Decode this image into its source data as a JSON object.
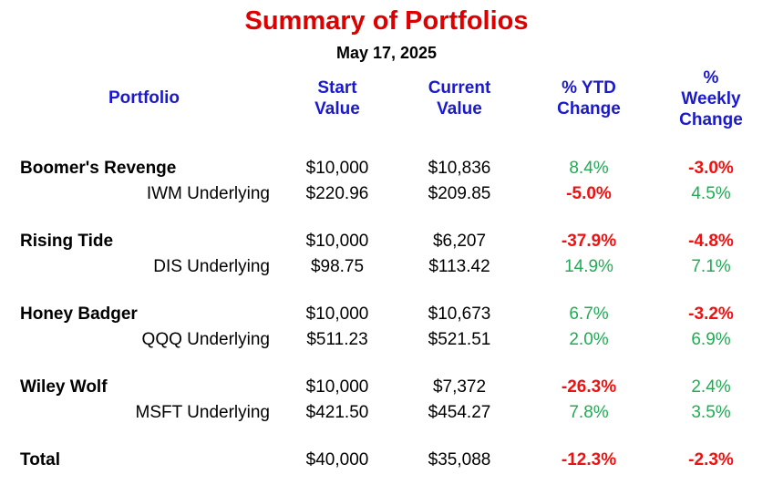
{
  "title": "Summary of Portfolios",
  "date": "May 17, 2025",
  "headers": {
    "portfolio": "Portfolio",
    "start": [
      "Start",
      "Value"
    ],
    "current": [
      "Current",
      "Value"
    ],
    "ytd": [
      "% YTD",
      "Change"
    ],
    "weekly": [
      "%",
      "Weekly",
      "Change"
    ]
  },
  "colors": {
    "title": "#dd0000",
    "header": "#1a1acc",
    "positive": "#22aa55",
    "negative": "#ee1111"
  },
  "rows": [
    {
      "name": "Boomer's Revenge",
      "kind": "portfolio",
      "start": "$10,000",
      "current": "$10,836",
      "ytd": "8.4%",
      "ytd_sign": "pos",
      "weekly": "-3.0%",
      "weekly_sign": "neg"
    },
    {
      "name": "IWM Underlying",
      "kind": "underlying",
      "start": "$220.96",
      "current": "$209.85",
      "ytd": "-5.0%",
      "ytd_sign": "neg",
      "weekly": "4.5%",
      "weekly_sign": "pos"
    },
    {
      "name": "Rising Tide",
      "kind": "portfolio",
      "start": "$10,000",
      "current": "$6,207",
      "ytd": "-37.9%",
      "ytd_sign": "neg",
      "weekly": "-4.8%",
      "weekly_sign": "neg"
    },
    {
      "name": "DIS Underlying",
      "kind": "underlying",
      "start": "$98.75",
      "current": "$113.42",
      "ytd": "14.9%",
      "ytd_sign": "pos",
      "weekly": "7.1%",
      "weekly_sign": "pos"
    },
    {
      "name": "Honey Badger",
      "kind": "portfolio",
      "start": "$10,000",
      "current": "$10,673",
      "ytd": "6.7%",
      "ytd_sign": "pos",
      "weekly": "-3.2%",
      "weekly_sign": "neg"
    },
    {
      "name": "QQQ Underlying",
      "kind": "underlying",
      "start": "$511.23",
      "current": "$521.51",
      "ytd": "2.0%",
      "ytd_sign": "pos",
      "weekly": "6.9%",
      "weekly_sign": "pos"
    },
    {
      "name": "Wiley Wolf",
      "kind": "portfolio",
      "start": "$10,000",
      "current": "$7,372",
      "ytd": "-26.3%",
      "ytd_sign": "neg",
      "weekly": "2.4%",
      "weekly_sign": "pos"
    },
    {
      "name": "MSFT Underlying",
      "kind": "underlying",
      "start": "$421.50",
      "current": "$454.27",
      "ytd": "7.8%",
      "ytd_sign": "pos",
      "weekly": "3.5%",
      "weekly_sign": "pos"
    },
    {
      "name": "Total",
      "kind": "portfolio",
      "start": "$40,000",
      "current": "$35,088",
      "ytd": "-12.3%",
      "ytd_sign": "neg",
      "weekly": "-2.3%",
      "weekly_sign": "neg"
    }
  ]
}
